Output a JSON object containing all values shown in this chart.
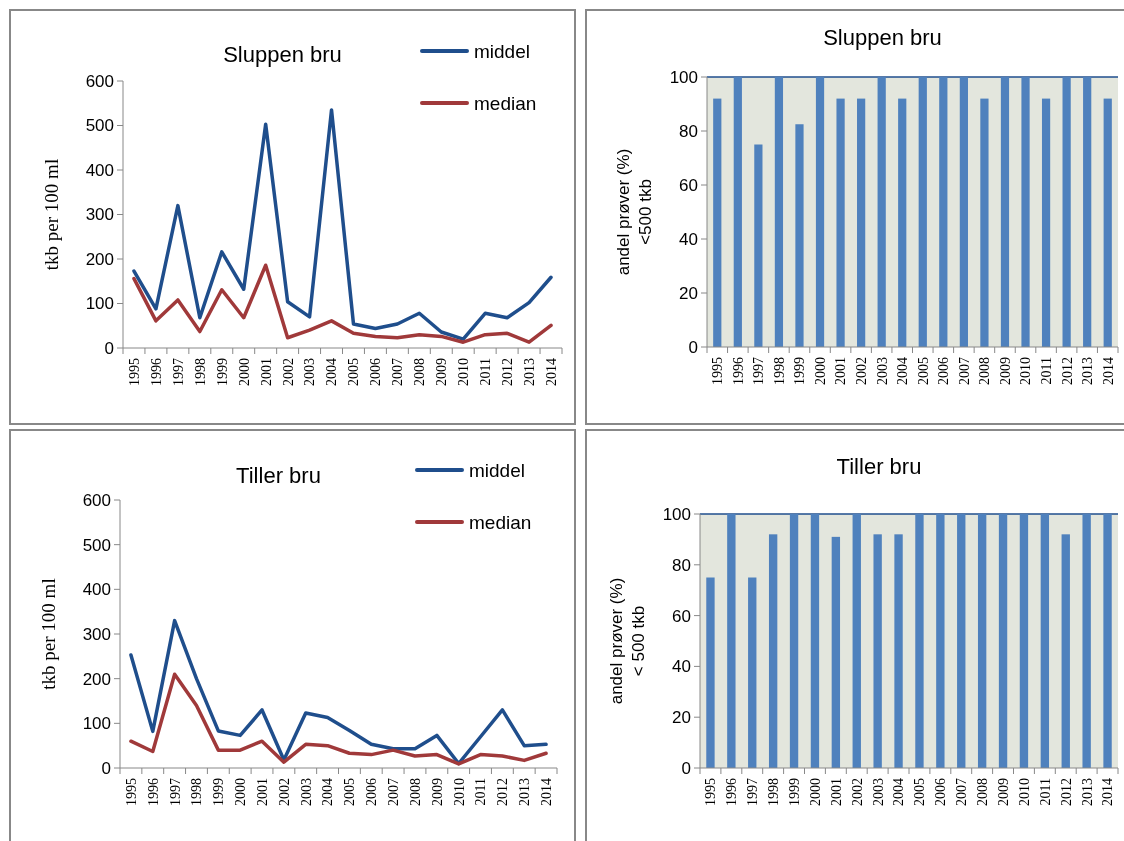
{
  "chart_data": [
    {
      "type": "line",
      "title": "Sluppen bru",
      "ylabel": "tkb per 100 ml",
      "categories": [
        "1995",
        "1996",
        "1997",
        "1998",
        "1999",
        "2000",
        "2001",
        "2002",
        "2003",
        "2004",
        "2005",
        "2006",
        "2007",
        "2008",
        "2009",
        "2010",
        "2011",
        "2012",
        "2013",
        "2014"
      ],
      "ylim": [
        0,
        600
      ],
      "yticks": [
        0,
        100,
        200,
        300,
        400,
        500,
        600
      ],
      "legend": "top right",
      "grid": false,
      "series": [
        {
          "name": "middel",
          "color": "#1f4e8c",
          "values": [
            173,
            88,
            320,
            68,
            216,
            132,
            503,
            104,
            70,
            535,
            54,
            44,
            54,
            78,
            36,
            20,
            78,
            68,
            102,
            159
          ]
        },
        {
          "name": "median",
          "color": "#a0393a",
          "values": [
            156,
            61,
            108,
            37,
            131,
            68,
            186,
            23,
            40,
            61,
            33,
            26,
            23,
            30,
            26,
            13,
            30,
            33,
            13,
            51
          ]
        }
      ]
    },
    {
      "type": "bar",
      "title": "Sluppen bru",
      "ylabel": "andel prøver (%)\n<500 tkb",
      "categories": [
        "1995",
        "1996",
        "1997",
        "1998",
        "1999",
        "2000",
        "2001",
        "2002",
        "2003",
        "2004",
        "2005",
        "2006",
        "2007",
        "2008",
        "2009",
        "2010",
        "2011",
        "2012",
        "2013",
        "2014"
      ],
      "ylim": [
        0,
        100
      ],
      "yticks": [
        0,
        20,
        40,
        60,
        80,
        100
      ],
      "grid": false,
      "series": [
        {
          "color": "#4f81bd",
          "values": [
            92,
            100,
            75,
            100,
            82.5,
            100,
            92,
            92,
            100,
            92,
            100,
            100,
            100,
            92,
            100,
            100,
            92,
            100,
            100,
            92
          ]
        }
      ]
    },
    {
      "type": "line",
      "title": "Tiller bru",
      "ylabel": "tkb per 100 ml",
      "categories": [
        "1995",
        "1996",
        "1997",
        "1998",
        "1999",
        "2000",
        "2001",
        "2002",
        "2003",
        "2004",
        "2005",
        "2006",
        "2007",
        "2008",
        "2009",
        "2010",
        "2011",
        "2012",
        "2013",
        "2014"
      ],
      "ylim": [
        0,
        600
      ],
      "yticks": [
        0,
        100,
        200,
        300,
        400,
        500,
        600
      ],
      "legend": "top right",
      "grid": false,
      "series": [
        {
          "name": "middel",
          "color": "#1f4e8c",
          "values": [
            253,
            82,
            330,
            200,
            83,
            73,
            130,
            18,
            123,
            113,
            84,
            53,
            43,
            43,
            73,
            10,
            70,
            130,
            50,
            53
          ]
        },
        {
          "name": "median",
          "color": "#a0393a",
          "values": [
            60,
            37,
            210,
            140,
            40,
            40,
            60,
            13,
            53,
            50,
            33,
            30,
            40,
            27,
            30,
            9,
            30,
            27,
            17,
            33
          ]
        }
      ]
    },
    {
      "type": "bar",
      "title": "Tiller bru",
      "ylabel": "andel prøver (%)\n< 500 tkb",
      "categories": [
        "1995",
        "1996",
        "1997",
        "1998",
        "1999",
        "2000",
        "2001",
        "2002",
        "2003",
        "2004",
        "2005",
        "2006",
        "2007",
        "2008",
        "2009",
        "2010",
        "2011",
        "2012",
        "2013",
        "2014"
      ],
      "ylim": [
        0,
        100
      ],
      "yticks": [
        0,
        20,
        40,
        60,
        80,
        100
      ],
      "grid": false,
      "series": [
        {
          "color": "#4f81bd",
          "values": [
            75,
            100,
            75,
            92,
            100,
            100,
            91,
            100,
            92,
            92,
            100,
            100,
            100,
            100,
            100,
            100,
            100,
            92,
            100,
            100
          ]
        }
      ]
    }
  ]
}
